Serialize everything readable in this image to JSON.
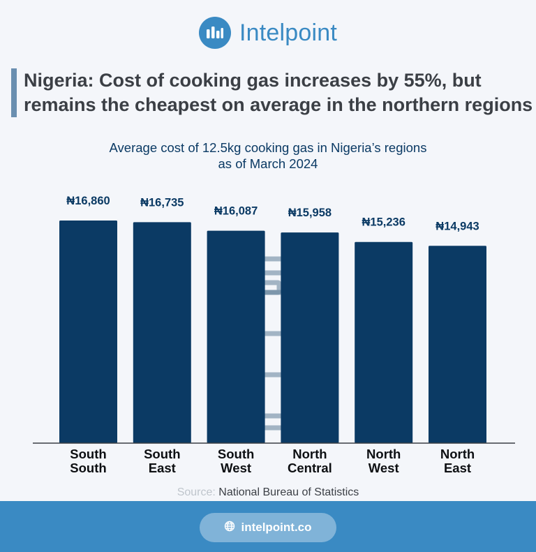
{
  "brand": {
    "name": "Intelpoint"
  },
  "headline": "Nigeria: Cost of cooking gas increases by 55%, but remains the cheapest on average in the northern regions",
  "chart_data": {
    "type": "bar",
    "title": "Average cost of 12.5kg cooking gas in Nigeria’s regions as of March 2024",
    "title_lines": [
      "Average cost of 12.5kg cooking gas in Nigeria’s regions",
      "as of March 2024"
    ],
    "categories": [
      "South South",
      "South East",
      "South West",
      "North Central",
      "North West",
      "North East"
    ],
    "category_lines": [
      [
        "South",
        "South"
      ],
      [
        "South",
        "East"
      ],
      [
        "South",
        "West"
      ],
      [
        "North",
        "Central"
      ],
      [
        "North",
        "West"
      ],
      [
        "North",
        "East"
      ]
    ],
    "values": [
      16860,
      16735,
      16087,
      15958,
      15236,
      14943
    ],
    "data_labels": [
      "₦16,860",
      "₦16,735",
      "₦16,087",
      "₦15,958",
      "₦15,236",
      "₦14,943"
    ],
    "ylim": [
      0,
      16860
    ],
    "grid": false,
    "bar_color": "#0b3a64"
  },
  "source": {
    "label": "Source:",
    "text": "National Bureau of Statistics"
  },
  "footer": {
    "url": "intelpoint.co"
  },
  "colors": {
    "accent": "#3a8ac3",
    "navy": "#0b3a64",
    "background": "#f4f6fa"
  }
}
